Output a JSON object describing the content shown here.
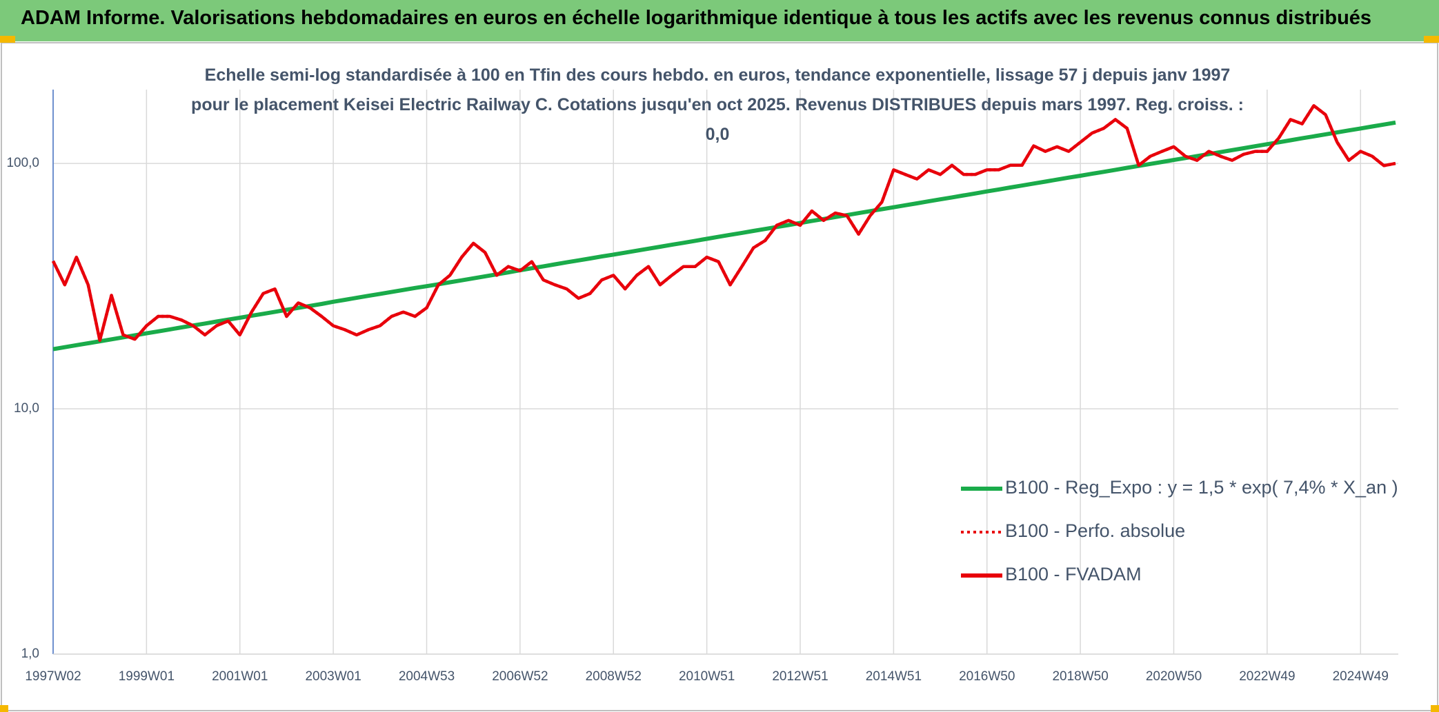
{
  "chart_data": {
    "type": "line",
    "title": "ADAM Informe. Valorisations hebdomadaires en euros en échelle logarithmique identique à tous les actifs avec les revenus connus distribués",
    "subtitle": "Echelle semi-log standardisée à 100 en Tfin des cours hebdo. en euros, tendance exponentielle, lissage 57 j depuis janv 1997 pour le placement Keisei Electric Railway C. Cotations jusqu'en oct 2025. Revenus DISTRIBUES depuis mars 1997. Reg. croiss. : 0,0",
    "log_scale": true,
    "grid": true,
    "legend": "right",
    "ylim": [
      1,
      200
    ],
    "yticks": [
      {
        "value": 1,
        "label": "1,0"
      },
      {
        "value": 10,
        "label": "10,0"
      },
      {
        "value": 100,
        "label": "100,0"
      }
    ],
    "categories": [
      "1997W02",
      null,
      null,
      null,
      null,
      null,
      null,
      null,
      "1999W01",
      null,
      null,
      null,
      null,
      null,
      null,
      null,
      "2001W01",
      null,
      null,
      null,
      null,
      null,
      null,
      null,
      "2003W01",
      null,
      null,
      null,
      null,
      null,
      null,
      null,
      "2004W53",
      null,
      null,
      null,
      null,
      null,
      null,
      null,
      "2006W52",
      null,
      null,
      null,
      null,
      null,
      null,
      null,
      "2008W52",
      null,
      null,
      null,
      null,
      null,
      null,
      null,
      "2010W51",
      null,
      null,
      null,
      null,
      null,
      null,
      null,
      "2012W51",
      null,
      null,
      null,
      null,
      null,
      null,
      null,
      "2014W51",
      null,
      null,
      null,
      null,
      null,
      null,
      null,
      "2016W50",
      null,
      null,
      null,
      null,
      null,
      null,
      null,
      "2018W50",
      null,
      null,
      null,
      null,
      null,
      null,
      null,
      "2020W50",
      null,
      null,
      null,
      null,
      null,
      null,
      null,
      "2022W49",
      null,
      null,
      null,
      null,
      null,
      null,
      null,
      "2024W49",
      null,
      null,
      null
    ],
    "series": [
      {
        "name": "B100 - Reg_Expo : y = 1,5 * exp( 7,4% *  X_an )",
        "color": "#1aab4a",
        "style": "solid",
        "values": [
          17.5,
          17.83,
          18.16,
          18.5,
          18.84,
          19.19,
          19.55,
          19.92,
          20.3,
          20.68,
          21.06,
          21.46,
          21.86,
          22.26,
          22.68,
          23.1,
          23.5,
          23.94,
          24.39,
          24.84,
          25.31,
          25.78,
          26.26,
          26.75,
          27.3,
          27.81,
          28.33,
          28.86,
          29.4,
          29.94,
          30.5,
          31.07,
          31.6,
          32.19,
          32.79,
          33.4,
          34.03,
          34.66,
          35.31,
          35.97,
          36.7,
          37.39,
          38.08,
          38.79,
          39.52,
          40.25,
          41.0,
          41.77,
          42.5,
          43.29,
          44.1,
          44.93,
          45.77,
          46.62,
          47.49,
          48.38,
          49.3,
          50.22,
          51.16,
          52.11,
          53.08,
          54.07,
          55.08,
          56.11,
          57.2,
          58.27,
          59.36,
          60.46,
          61.59,
          62.74,
          63.91,
          65.1,
          66.3,
          67.54,
          68.8,
          70.08,
          71.39,
          72.72,
          74.08,
          75.46,
          76.9,
          78.34,
          79.8,
          81.29,
          82.81,
          84.35,
          85.93,
          87.53,
          89.1,
          90.76,
          92.46,
          94.19,
          95.95,
          97.74,
          99.56,
          101.42,
          103.3,
          105.23,
          107.19,
          109.19,
          111.23,
          113.31,
          115.42,
          117.58,
          119.8,
          122.04,
          124.32,
          126.64,
          129.0,
          131.41,
          133.86,
          136.36,
          138.9,
          141.5,
          144.1,
          146.8
        ]
      },
      {
        "name": "B100 - Perfo. absolue",
        "color": "#e8000b",
        "style": "dotted",
        "values": [
          40,
          32,
          41.5,
          32,
          19,
          29,
          20,
          19.2,
          21.8,
          23.8,
          23.8,
          23,
          21.8,
          20,
          21.8,
          22.8,
          20,
          24.8,
          29.5,
          30.8,
          23.8,
          27,
          25.8,
          23.8,
          21.8,
          21,
          20,
          21,
          21.8,
          23.8,
          24.8,
          23.8,
          25.8,
          32,
          35,
          41.5,
          47.3,
          43.4,
          35,
          38,
          36.5,
          39.8,
          33.5,
          32,
          30.8,
          28.2,
          29.5,
          33.5,
          35,
          30.8,
          35,
          38,
          32,
          35,
          38,
          38,
          41.5,
          39.8,
          32,
          38,
          45.3,
          48.5,
          56,
          58.6,
          56,
          64,
          58.6,
          62.8,
          61.3,
          51.5,
          61.3,
          69.6,
          94.2,
          90.2,
          86.4,
          94.2,
          90.2,
          98.3,
          90.2,
          90.2,
          94.2,
          94.2,
          98.3,
          98.3,
          118,
          112,
          117,
          112,
          122,
          133,
          139,
          151,
          139,
          98.3,
          107,
          112,
          117,
          107,
          103,
          112,
          107,
          103,
          109,
          112,
          112,
          127,
          151,
          145,
          172,
          158,
          122,
          103,
          112,
          107,
          98,
          100
        ]
      },
      {
        "name": "B100 - FVADAM",
        "color": "#e8000b",
        "style": "solid",
        "values": [
          40,
          32,
          41.5,
          32,
          19,
          29,
          20,
          19.2,
          21.8,
          23.8,
          23.8,
          23,
          21.8,
          20,
          21.8,
          22.8,
          20,
          24.8,
          29.5,
          30.8,
          23.8,
          27,
          25.8,
          23.8,
          21.8,
          21,
          20,
          21,
          21.8,
          23.8,
          24.8,
          23.8,
          25.8,
          32,
          35,
          41.5,
          47.3,
          43.4,
          35,
          38,
          36.5,
          39.8,
          33.5,
          32,
          30.8,
          28.2,
          29.5,
          33.5,
          35,
          30.8,
          35,
          38,
          32,
          35,
          38,
          38,
          41.5,
          39.8,
          32,
          38,
          45.3,
          48.5,
          56,
          58.6,
          56,
          64,
          58.6,
          62.8,
          61.3,
          51.5,
          61.3,
          69.6,
          94.2,
          90.2,
          86.4,
          94.2,
          90.2,
          98.3,
          90.2,
          90.2,
          94.2,
          94.2,
          98.3,
          98.3,
          118,
          112,
          117,
          112,
          122,
          133,
          139,
          151,
          139,
          98.3,
          107,
          112,
          117,
          107,
          103,
          112,
          107,
          103,
          109,
          112,
          112,
          127,
          151,
          145,
          172,
          158,
          122,
          103,
          112,
          107,
          98,
          100
        ]
      }
    ]
  }
}
